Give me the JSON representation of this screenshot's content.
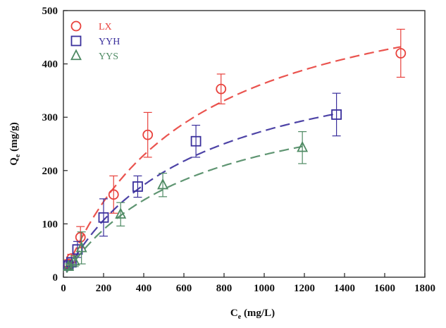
{
  "chart_data": {
    "type": "scatter",
    "title": "",
    "xlabel": "C",
    "xlabel_sub": "e",
    "xlabel_unit": "(mg/L)",
    "ylabel": "Q",
    "ylabel_sub": "e",
    "ylabel_unit": "(mg/g)",
    "xlim": [
      0,
      1800
    ],
    "ylim": [
      0,
      500
    ],
    "xticks": [
      0,
      200,
      400,
      600,
      800,
      1000,
      1200,
      1400,
      1600,
      1800
    ],
    "yticks": [
      0,
      100,
      200,
      300,
      400,
      500
    ],
    "grid": false,
    "legend_position": "top-left",
    "series": [
      {
        "name": "LX",
        "marker": "circle",
        "color": "#e8413c",
        "points": [
          {
            "x": 25,
            "y": 25,
            "err": 8
          },
          {
            "x": 40,
            "y": 35,
            "err": 8
          },
          {
            "x": 85,
            "y": 75,
            "err": 20
          },
          {
            "x": 250,
            "y": 155,
            "err": 35
          },
          {
            "x": 420,
            "y": 267,
            "err": 42
          },
          {
            "x": 785,
            "y": 353,
            "err": 28
          },
          {
            "x": 1680,
            "y": 420,
            "err": 45
          }
        ],
        "fit": {
          "qmax": 598,
          "k": 0.00155,
          "xmax": 1680
        }
      },
      {
        "name": "YYH",
        "marker": "square",
        "color": "#3a2f9c",
        "points": [
          {
            "x": 25,
            "y": 22,
            "err": 6
          },
          {
            "x": 40,
            "y": 28,
            "err": 8
          },
          {
            "x": 70,
            "y": 52,
            "err": 15
          },
          {
            "x": 200,
            "y": 112,
            "err": 35
          },
          {
            "x": 370,
            "y": 170,
            "err": 20
          },
          {
            "x": 660,
            "y": 255,
            "err": 30
          },
          {
            "x": 1360,
            "y": 305,
            "err": 40
          }
        ],
        "fit": {
          "qmax": 452,
          "k": 0.00155,
          "xmax": 1360
        }
      },
      {
        "name": "YYS",
        "marker": "triangle",
        "color": "#4e8a63",
        "points": [
          {
            "x": 25,
            "y": 20,
            "err": 5
          },
          {
            "x": 55,
            "y": 30,
            "err": 10
          },
          {
            "x": 90,
            "y": 55,
            "err": 30
          },
          {
            "x": 285,
            "y": 118,
            "err": 22
          },
          {
            "x": 495,
            "y": 173,
            "err": 22
          },
          {
            "x": 1190,
            "y": 243,
            "err": 30
          }
        ],
        "fit": {
          "qmax": 378,
          "k": 0.00155,
          "xmax": 1190
        }
      }
    ]
  }
}
